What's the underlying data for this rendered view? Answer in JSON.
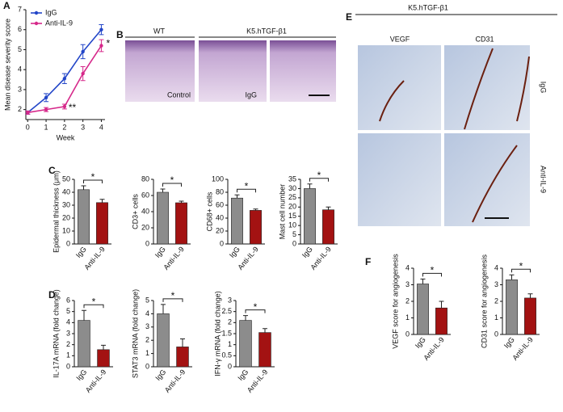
{
  "panel_labels": [
    "A",
    "B",
    "C",
    "D",
    "E",
    "F"
  ],
  "image_panels": {
    "B": {
      "groups": [
        "WT",
        "K5.hTGF-β1"
      ],
      "labels": [
        "Control",
        "IgG"
      ]
    },
    "E": {
      "group": "K5.hTGF-β1",
      "columns": [
        "VEGF",
        "CD31"
      ],
      "rows": [
        "IgG",
        "Anti-IL-9"
      ]
    }
  },
  "chart_data": [
    {
      "type": "line",
      "xlabel": "Week",
      "ylabel": "Mean disease severity score",
      "x": [
        0,
        1,
        2,
        3,
        4
      ],
      "xlim": [
        -0.1,
        4.2
      ],
      "xticks": [
        0,
        1,
        2,
        3,
        4
      ],
      "ylim": [
        1.5,
        7
      ],
      "yticks": [
        2,
        3,
        4,
        5,
        6,
        7
      ],
      "series": [
        {
          "name": "IgG",
          "color": "#2346c8",
          "values": [
            1.85,
            2.6,
            3.55,
            4.9,
            6.0
          ],
          "errors": [
            0.08,
            0.2,
            0.25,
            0.35,
            0.25
          ]
        },
        {
          "name": "Anti-IL-9",
          "color": "#d6288a",
          "values": [
            1.85,
            2.0,
            2.15,
            3.8,
            5.2
          ],
          "errors": [
            0.08,
            0.1,
            0.12,
            0.35,
            0.3
          ]
        }
      ],
      "annotations": [
        "**",
        "*"
      ]
    },
    {
      "type": "bar",
      "ylabel": "Epidermal thickness (μm)",
      "categories": [
        "IgG",
        "Anti-IL-9"
      ],
      "values": [
        42,
        32
      ],
      "errors": [
        3,
        2.5
      ],
      "colors": [
        "#8c8c8c",
        "#a31212"
      ],
      "ylim": [
        0,
        50
      ],
      "yticks": [
        0,
        10,
        20,
        30,
        40,
        50
      ],
      "annotation": "*"
    },
    {
      "type": "bar",
      "ylabel": "CD3+ cells",
      "categories": [
        "IgG",
        "Anti-IL-9"
      ],
      "values": [
        64,
        51
      ],
      "errors": [
        4,
        2
      ],
      "colors": [
        "#8c8c8c",
        "#a31212"
      ],
      "ylim": [
        0,
        80
      ],
      "yticks": [
        0,
        20,
        40,
        60,
        80
      ],
      "annotation": "*"
    },
    {
      "type": "bar",
      "ylabel": "CD68+ cells",
      "categories": [
        "IgG",
        "Anti-IL-9"
      ],
      "values": [
        71,
        52
      ],
      "errors": [
        5,
        2
      ],
      "colors": [
        "#8c8c8c",
        "#a31212"
      ],
      "ylim": [
        0,
        100
      ],
      "yticks": [
        0,
        20,
        40,
        60,
        80,
        100
      ],
      "annotation": "*"
    },
    {
      "type": "bar",
      "ylabel": "Mast cell number",
      "categories": [
        "IgG",
        "Anti-IL-9"
      ],
      "values": [
        30,
        18.5
      ],
      "errors": [
        2.5,
        1.5
      ],
      "colors": [
        "#8c8c8c",
        "#a31212"
      ],
      "ylim": [
        0,
        35
      ],
      "yticks": [
        0,
        5,
        10,
        15,
        20,
        25,
        30,
        35
      ],
      "annotation": "*"
    },
    {
      "type": "bar",
      "ylabel": "IL-17A mRNA (fold change)",
      "categories": [
        "IgG",
        "Anti-IL-9"
      ],
      "values": [
        4.2,
        1.55
      ],
      "errors": [
        0.9,
        0.4
      ],
      "colors": [
        "#8c8c8c",
        "#a31212"
      ],
      "ylim": [
        0,
        6
      ],
      "yticks": [
        0,
        1,
        2,
        3,
        4,
        5,
        6
      ],
      "annotation": "*"
    },
    {
      "type": "bar",
      "ylabel": "STAT3 mRNA (fold change)",
      "categories": [
        "IgG",
        "Anti-IL-9"
      ],
      "values": [
        4.0,
        1.5
      ],
      "errors": [
        0.7,
        0.6
      ],
      "colors": [
        "#8c8c8c",
        "#a31212"
      ],
      "ylim": [
        0,
        5
      ],
      "yticks": [
        0,
        1,
        2,
        3,
        4,
        5
      ],
      "annotation": "*"
    },
    {
      "type": "bar",
      "ylabel": "IFN-γ mRNA (fold change)",
      "categories": [
        "IgG",
        "Anti-IL-9"
      ],
      "values": [
        2.1,
        1.55
      ],
      "errors": [
        0.22,
        0.18
      ],
      "colors": [
        "#8c8c8c",
        "#a31212"
      ],
      "ylim": [
        0,
        3
      ],
      "yticks": [
        0,
        0.5,
        1,
        1.5,
        2,
        2.5,
        3
      ],
      "annotation": "*"
    },
    {
      "type": "bar",
      "ylabel": "VEGF score for angiogenesis",
      "categories": [
        "IgG",
        "Anti-IL-9"
      ],
      "values": [
        3.05,
        1.6
      ],
      "errors": [
        0.3,
        0.4
      ],
      "colors": [
        "#8c8c8c",
        "#a31212"
      ],
      "ylim": [
        0,
        4
      ],
      "yticks": [
        0,
        1,
        2,
        3,
        4
      ],
      "annotation": "*"
    },
    {
      "type": "bar",
      "ylabel": "CD31 score for angiogenesis",
      "categories": [
        "IgG",
        "Anti-IL-9"
      ],
      "values": [
        3.3,
        2.2
      ],
      "errors": [
        0.3,
        0.25
      ],
      "colors": [
        "#8c8c8c",
        "#a31212"
      ],
      "ylim": [
        0,
        4
      ],
      "yticks": [
        0,
        1,
        2,
        3,
        4
      ],
      "annotation": "*"
    }
  ]
}
